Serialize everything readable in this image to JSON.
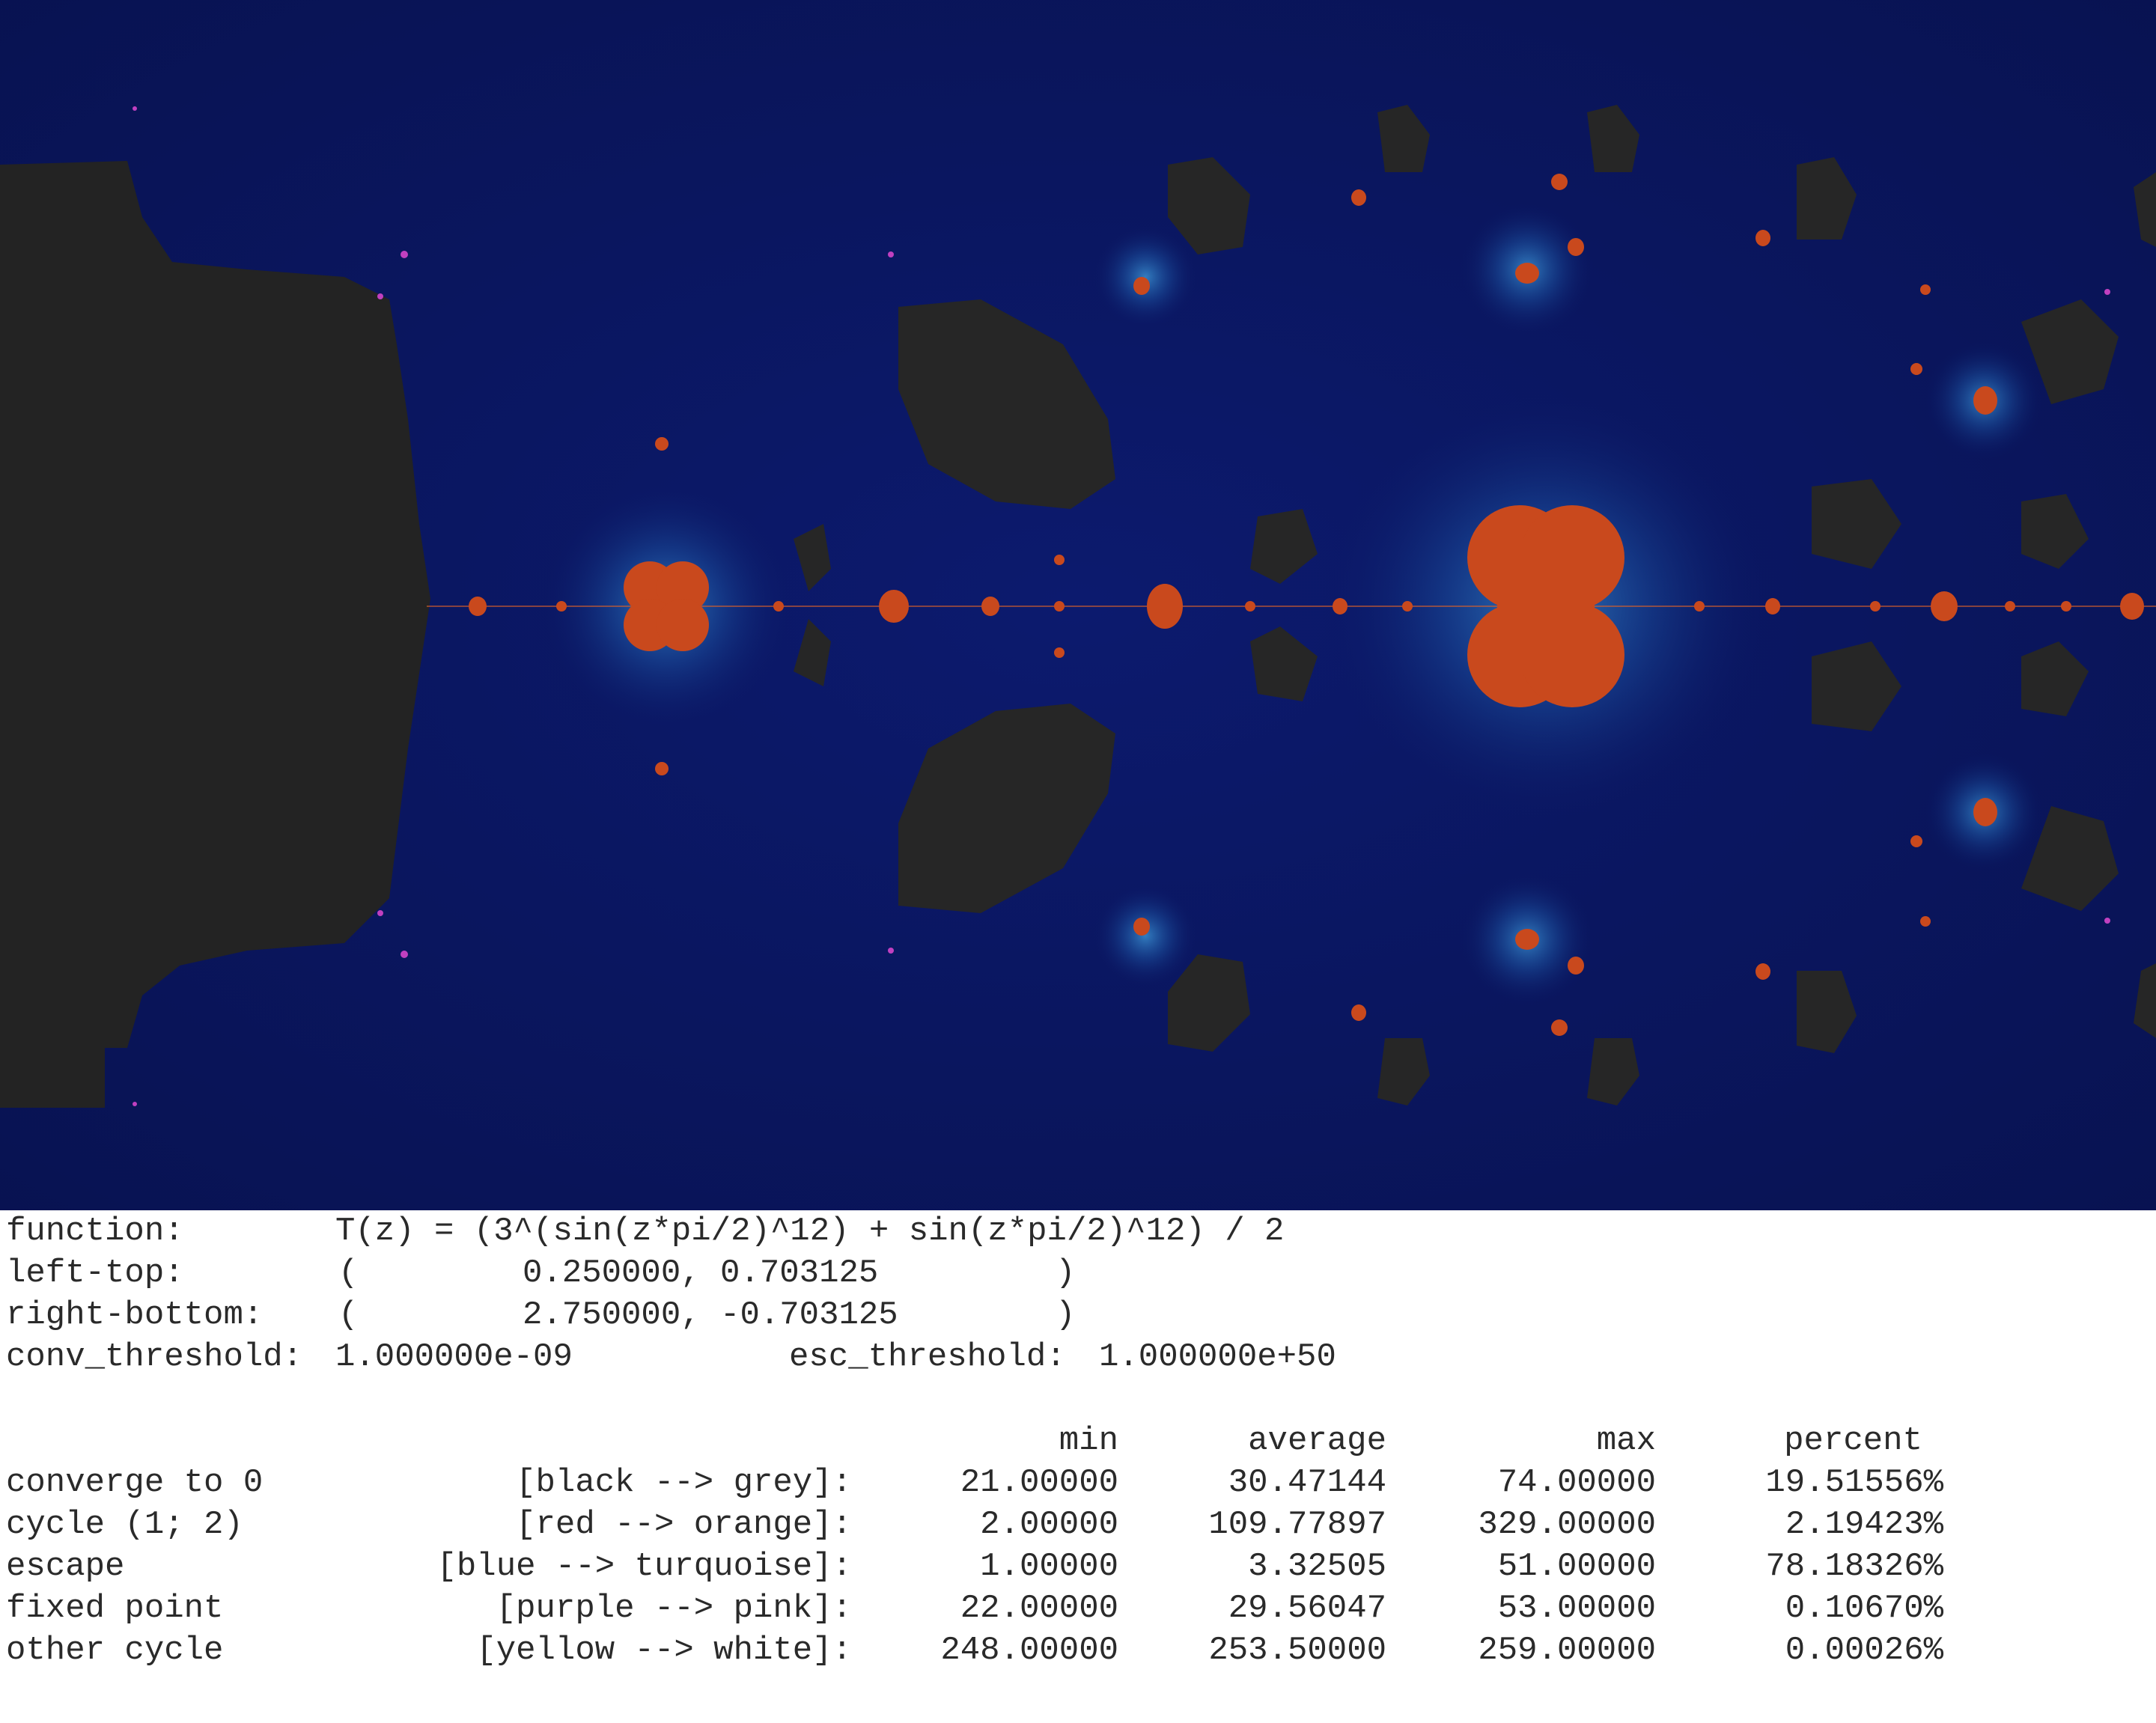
{
  "params": {
    "function_label": "function:",
    "function_value": "T(z) = (3^(sin(z*pi/2)^12) + sin(z*pi/2)^12) / 2",
    "left_top_label": "left-top:",
    "left_top_open": "(",
    "left_top_value": "0.250000, 0.703125",
    "left_top_close": ")",
    "right_bottom_label": "right-bottom:",
    "right_bottom_open": "(",
    "right_bottom_value": "2.750000, -0.703125",
    "right_bottom_close": ")",
    "conv_threshold_label": "conv_threshold:",
    "conv_threshold_value": "1.000000e-09",
    "esc_threshold_label": "esc_threshold:",
    "esc_threshold_value": "1.000000e+50"
  },
  "stats": {
    "headers": {
      "min": "min",
      "average": "average",
      "max": "max",
      "percent": "percent"
    },
    "rows": [
      {
        "name": "converge to 0",
        "colors": "[black --> grey]:",
        "min": "21.00000",
        "average": "30.47144",
        "max": "74.00000",
        "percent": "19.51556%"
      },
      {
        "name": "cycle (1; 2)",
        "colors": "[red --> orange]:",
        "min": "2.00000",
        "average": "109.77897",
        "max": "329.00000",
        "percent": "2.19423%"
      },
      {
        "name": "escape",
        "colors": "[blue --> turquoise]:",
        "min": "1.00000",
        "average": "3.32505",
        "max": "51.00000",
        "percent": "78.18326%"
      },
      {
        "name": "fixed point",
        "colors": "[purple --> pink]:",
        "min": "22.00000",
        "average": "29.56047",
        "max": "53.00000",
        "percent": "0.10670%"
      },
      {
        "name": "other cycle",
        "colors": "[yellow --> white]:",
        "min": "248.00000",
        "average": "253.50000",
        "max": "259.00000",
        "percent": "0.00026%"
      }
    ]
  },
  "colors": {
    "escape_background": "#0a1560",
    "converge_region": "#242424",
    "cycle_region": "#c9491d",
    "halo": "#1e5aa8",
    "fixed_point": "#c040c0"
  }
}
